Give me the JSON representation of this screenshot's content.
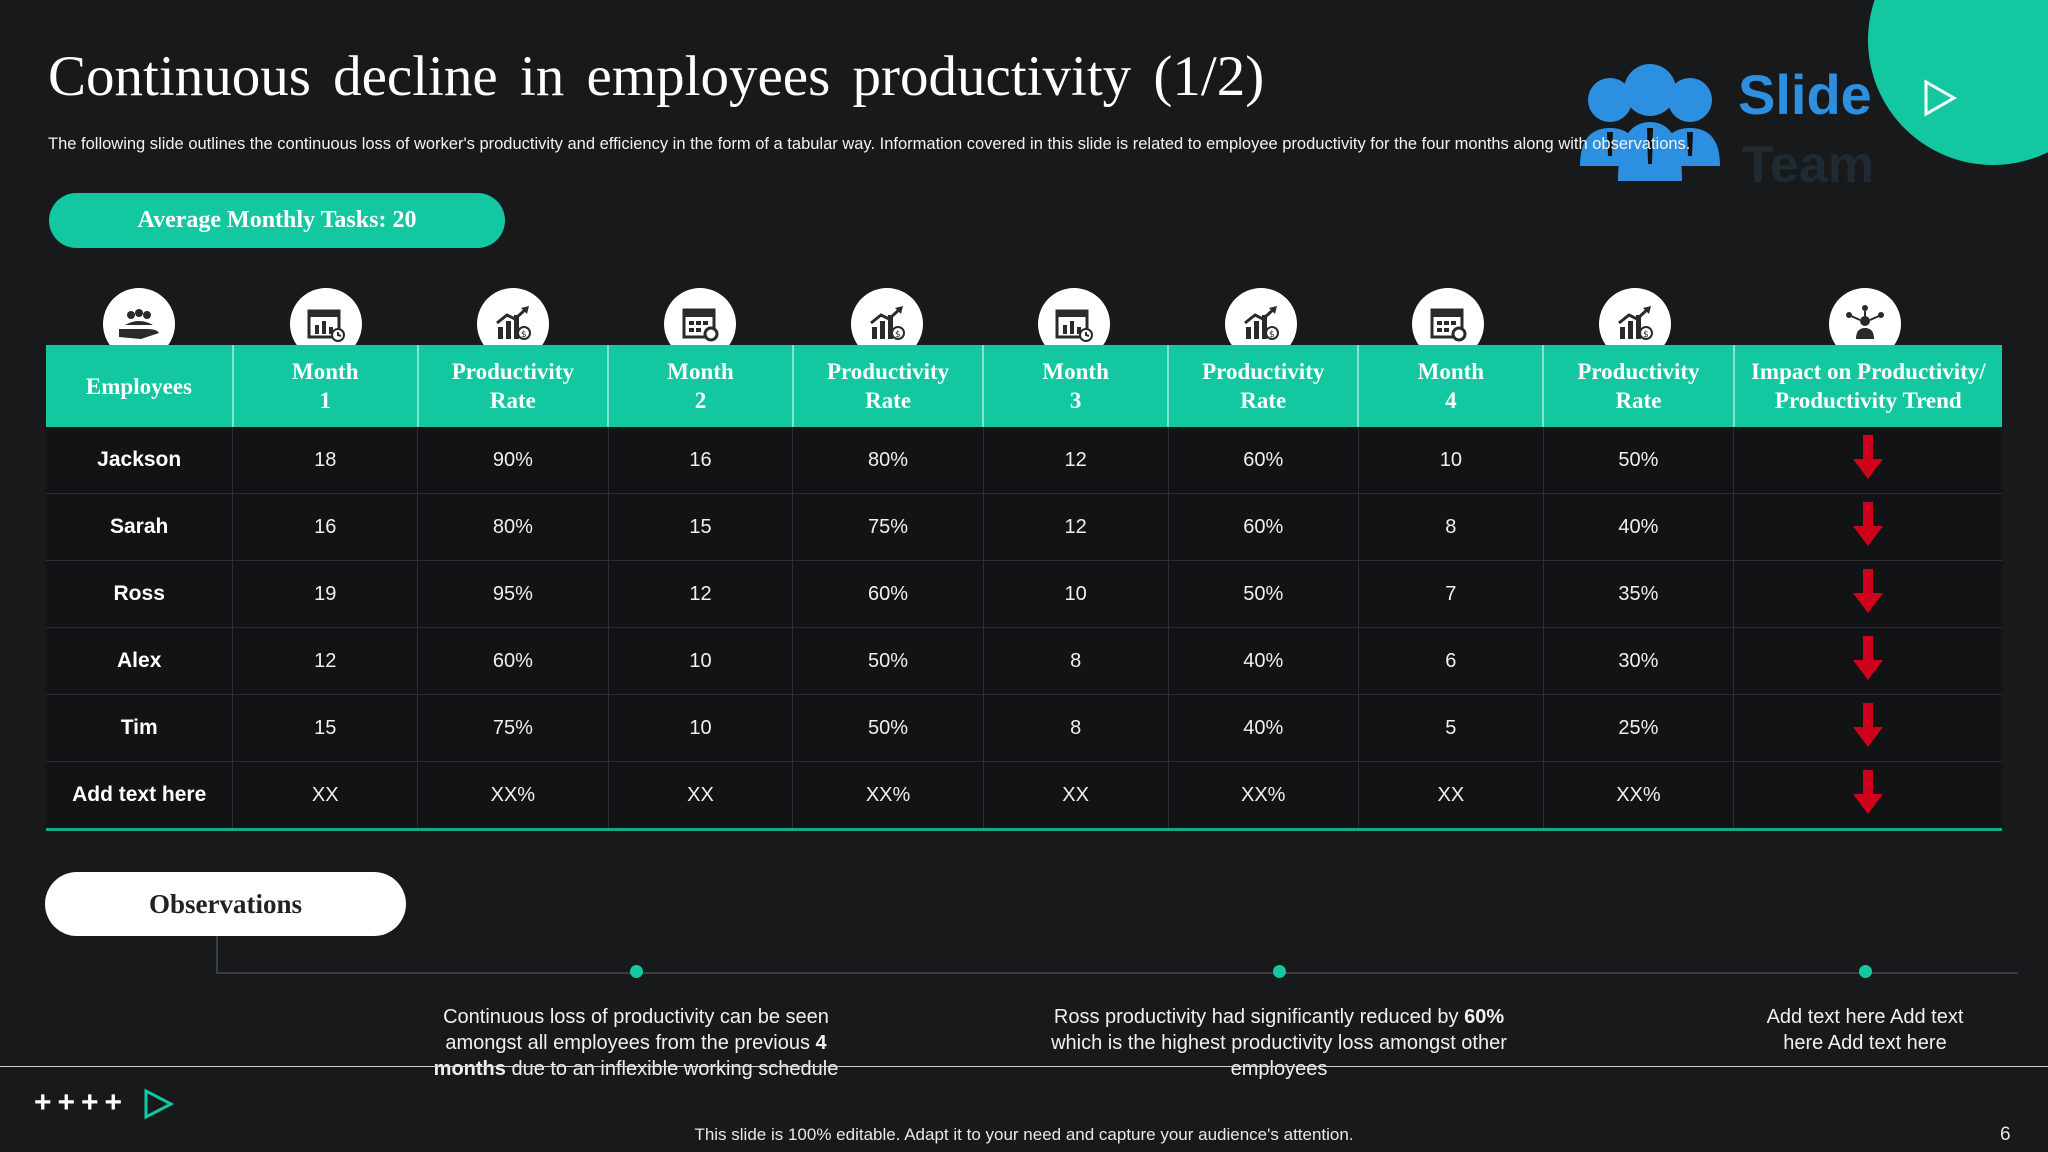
{
  "slide": {
    "title": "Continuous decline in employees productivity (1/2)",
    "subtitle": "The following slide outlines the continuous loss of worker's productivity and efficiency in the form of a tabular way. Information covered in this slide is related to employee productivity for the four months along with observations.",
    "badge": "Average Monthly Tasks: 20",
    "logo_text_1": "Slide",
    "logo_text_2": "Team",
    "page_number": "6",
    "footer": "This slide is 100% editable. Adapt it to your need and capture your audience's attention.",
    "footer_symbols": "++++"
  },
  "table": {
    "headers": [
      {
        "line1": "Employees",
        "line2": ""
      },
      {
        "line1": "Month",
        "line2": "1"
      },
      {
        "line1": "Productivity",
        "line2": "Rate"
      },
      {
        "line1": "Month",
        "line2": "2"
      },
      {
        "line1": "Productivity",
        "line2": "Rate"
      },
      {
        "line1": "Month",
        "line2": "3"
      },
      {
        "line1": "Productivity",
        "line2": "Rate"
      },
      {
        "line1": "Month",
        "line2": "4"
      },
      {
        "line1": "Productivity",
        "line2": "Rate"
      },
      {
        "line1": "Impact on Productivity/",
        "line2": "Productivity Trend"
      }
    ],
    "header_icons": [
      "team-hand-icon",
      "calendar-chart-icon",
      "growth-chart-icon",
      "calendar-gear-icon",
      "growth-chart-icon",
      "calendar-chart-icon",
      "growth-chart-icon",
      "calendar-gear-icon",
      "growth-chart-icon",
      "network-person-icon"
    ],
    "rows": [
      [
        "Jackson",
        "18",
        "90%",
        "16",
        "80%",
        "12",
        "60%",
        "10",
        "50%"
      ],
      [
        "Sarah",
        "16",
        "80%",
        "15",
        "75%",
        "12",
        "60%",
        "8",
        "40%"
      ],
      [
        "Ross",
        "19",
        "95%",
        "12",
        "60%",
        "10",
        "50%",
        "7",
        "35%"
      ],
      [
        "Alex",
        "12",
        "60%",
        "10",
        "50%",
        "8",
        "40%",
        "6",
        "30%"
      ],
      [
        "Tim",
        "15",
        "75%",
        "10",
        "50%",
        "8",
        "40%",
        "5",
        "25%"
      ],
      [
        "Add text here",
        "XX",
        "XX%",
        "XX",
        "XX%",
        "XX",
        "XX%",
        "XX",
        "XX%"
      ]
    ],
    "trend_icon": "down-arrow-icon"
  },
  "observations": {
    "label": "Observations",
    "items": [
      {
        "pre": "Continuous loss of productivity can be seen amongst all employees from the previous ",
        "bold": "4 months",
        "post": " due to an inflexible working schedule"
      },
      {
        "pre": "Ross productivity had significantly reduced by ",
        "bold": "60%",
        "post": " which is the highest productivity loss amongst other employees"
      },
      {
        "pre": "Add text here Add text here Add text here",
        "bold": "",
        "post": ""
      }
    ]
  },
  "colors": {
    "accent": "#13c7a0",
    "background": "#17191b",
    "arrow": "#d0021b",
    "logo": "#2d8fe0"
  }
}
